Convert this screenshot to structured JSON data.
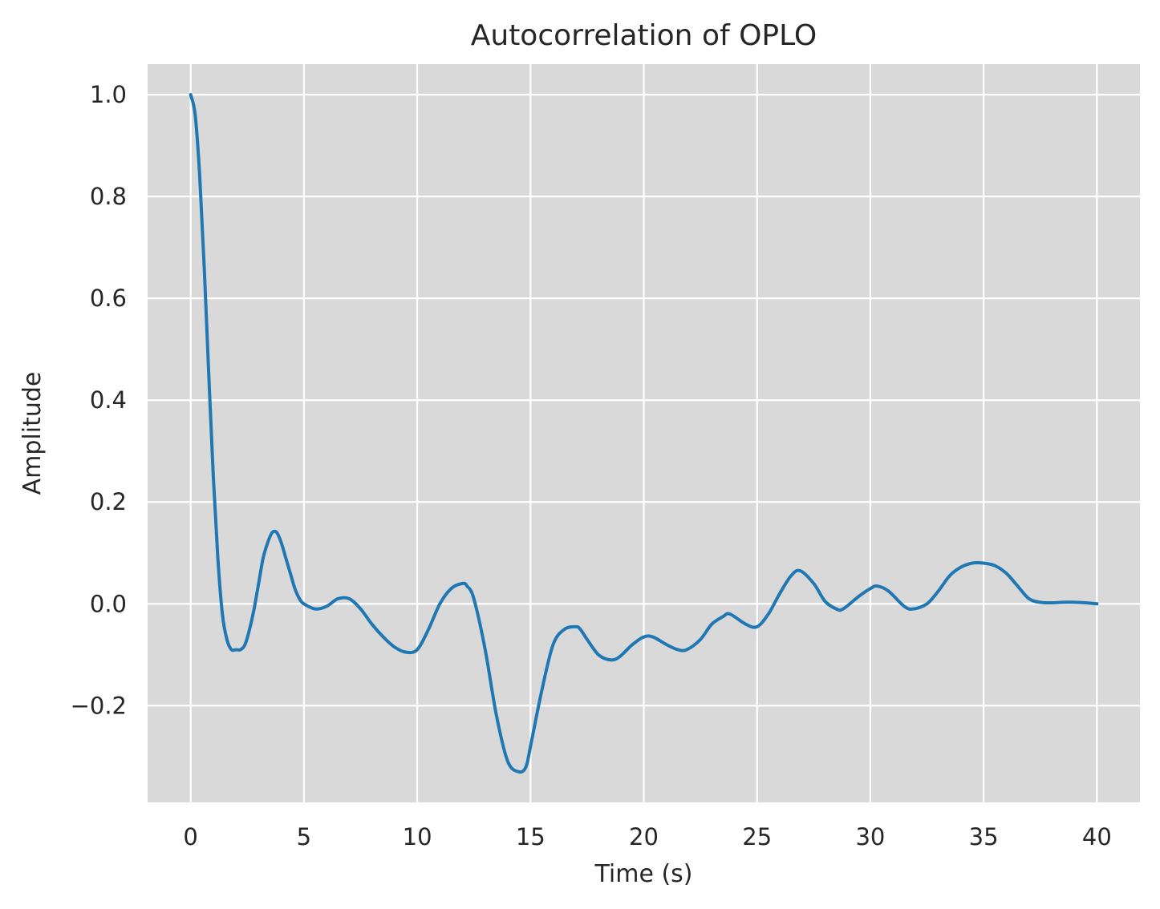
{
  "chart_data": {
    "type": "line",
    "title": "Autocorrelation of OPLO",
    "xlabel": "Time (s)",
    "ylabel": "Amplitude",
    "xlim": [
      -1.9,
      41.9
    ],
    "ylim": [
      -0.39,
      1.06
    ],
    "x_ticks": [
      0,
      5,
      10,
      15,
      20,
      25,
      30,
      35,
      40
    ],
    "y_ticks": [
      -0.2,
      0.0,
      0.2,
      0.4,
      0.6,
      0.8,
      1.0
    ],
    "x_tick_labels": [
      "0",
      "5",
      "10",
      "15",
      "20",
      "25",
      "30",
      "35",
      "40"
    ],
    "y_tick_labels": [
      "−0.2",
      "0.0",
      "0.2",
      "0.4",
      "0.6",
      "0.8",
      "1.0"
    ],
    "grid": true,
    "colors": {
      "background": "#d9d9d9",
      "grid": "#ffffff",
      "line": "#1f77b4"
    },
    "series": [
      {
        "x": [
          0,
          0.2,
          0.4,
          0.6,
          0.8,
          1.0,
          1.2,
          1.4,
          1.6,
          1.8,
          2.0,
          2.2,
          2.4,
          2.6,
          2.8,
          3.0,
          3.2,
          3.4,
          3.6,
          3.8,
          4.0,
          4.2,
          4.4,
          4.6,
          4.8,
          5.0,
          5.5,
          6.0,
          6.5,
          7.0,
          7.5,
          8.0,
          8.5,
          9.0,
          9.5,
          10.0,
          10.5,
          11.0,
          11.5,
          12.0,
          12.2,
          12.5,
          13.0,
          13.5,
          14.0,
          14.5,
          14.8,
          15.0,
          15.5,
          16.0,
          16.5,
          17.0,
          17.2,
          17.5,
          18.0,
          18.5,
          18.9,
          19.5,
          20.0,
          20.4,
          21.0,
          21.5,
          21.9,
          22.5,
          23.0,
          23.5,
          23.8,
          24.5,
          25.0,
          25.5,
          26.0,
          26.5,
          26.9,
          27.5,
          28.0,
          28.5,
          28.8,
          29.5,
          30.0,
          30.3,
          30.8,
          31.5,
          31.9,
          32.5,
          33.0,
          33.5,
          34.0,
          34.5,
          35.0,
          35.5,
          36.0,
          36.5,
          37.0,
          37.5,
          38.0,
          38.5,
          39.0,
          39.5,
          40.0
        ],
        "y": [
          1.0,
          0.96,
          0.84,
          0.66,
          0.45,
          0.25,
          0.09,
          -0.02,
          -0.07,
          -0.09,
          -0.09,
          -0.09,
          -0.08,
          -0.05,
          -0.01,
          0.04,
          0.09,
          0.12,
          0.14,
          0.14,
          0.12,
          0.09,
          0.06,
          0.03,
          0.01,
          0.0,
          -0.01,
          -0.005,
          0.01,
          0.01,
          -0.01,
          -0.04,
          -0.065,
          -0.085,
          -0.095,
          -0.09,
          -0.05,
          0.0,
          0.03,
          0.04,
          0.035,
          0.01,
          -0.09,
          -0.22,
          -0.31,
          -0.33,
          -0.32,
          -0.28,
          -0.17,
          -0.08,
          -0.05,
          -0.045,
          -0.05,
          -0.07,
          -0.1,
          -0.11,
          -0.105,
          -0.08,
          -0.065,
          -0.065,
          -0.08,
          -0.09,
          -0.09,
          -0.07,
          -0.04,
          -0.025,
          -0.02,
          -0.04,
          -0.045,
          -0.02,
          0.02,
          0.055,
          0.065,
          0.04,
          0.005,
          -0.01,
          -0.01,
          0.015,
          0.03,
          0.035,
          0.025,
          -0.005,
          -0.01,
          0.0,
          0.025,
          0.055,
          0.072,
          0.08,
          0.08,
          0.075,
          0.06,
          0.035,
          0.01,
          0.003,
          0.002,
          0.003,
          0.003,
          0.002,
          0.0
        ]
      }
    ]
  }
}
